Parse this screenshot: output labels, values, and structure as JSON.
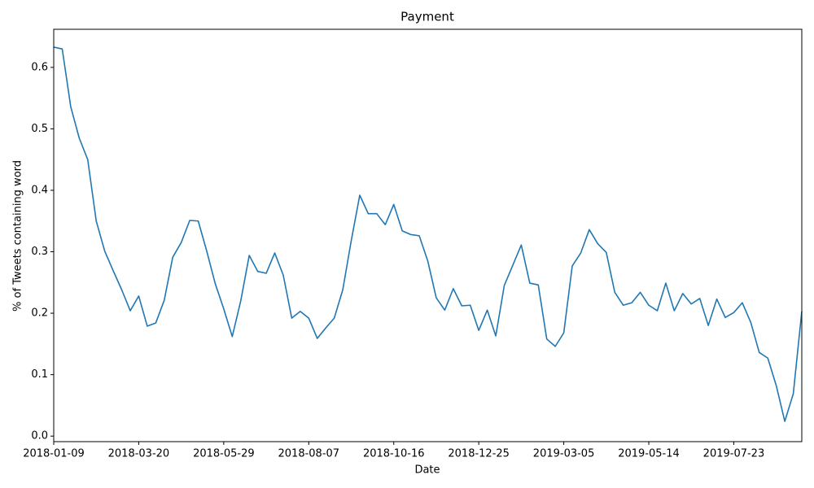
{
  "chart_data": {
    "type": "line",
    "title": "Payment",
    "xlabel": "Date",
    "ylabel": "% of Tweets containing word",
    "x": [
      "2018-01-09",
      "2018-01-16",
      "2018-01-23",
      "2018-01-30",
      "2018-02-06",
      "2018-02-13",
      "2018-02-20",
      "2018-02-27",
      "2018-03-06",
      "2018-03-13",
      "2018-03-20",
      "2018-03-27",
      "2018-04-03",
      "2018-04-10",
      "2018-04-17",
      "2018-04-24",
      "2018-05-01",
      "2018-05-08",
      "2018-05-15",
      "2018-05-22",
      "2018-05-29",
      "2018-06-05",
      "2018-06-12",
      "2018-06-19",
      "2018-06-26",
      "2018-07-03",
      "2018-07-10",
      "2018-07-17",
      "2018-07-24",
      "2018-07-31",
      "2018-08-07",
      "2018-08-14",
      "2018-08-21",
      "2018-08-28",
      "2018-09-04",
      "2018-09-11",
      "2018-09-18",
      "2018-09-25",
      "2018-10-02",
      "2018-10-09",
      "2018-10-16",
      "2018-10-23",
      "2018-10-30",
      "2018-11-06",
      "2018-11-13",
      "2018-11-20",
      "2018-11-27",
      "2018-12-04",
      "2018-12-11",
      "2018-12-18",
      "2018-12-25",
      "2019-01-01",
      "2019-01-08",
      "2019-01-15",
      "2019-01-22",
      "2019-01-29",
      "2019-02-05",
      "2019-02-12",
      "2019-02-19",
      "2019-02-26",
      "2019-03-05",
      "2019-03-12",
      "2019-03-19",
      "2019-03-26",
      "2019-04-02",
      "2019-04-09",
      "2019-04-16",
      "2019-04-23",
      "2019-04-30",
      "2019-05-07",
      "2019-05-14",
      "2019-05-21",
      "2019-05-28",
      "2019-06-04",
      "2019-06-11",
      "2019-06-18",
      "2019-06-25",
      "2019-07-02",
      "2019-07-09",
      "2019-07-16",
      "2019-07-23",
      "2019-07-30",
      "2019-08-06",
      "2019-08-13",
      "2019-08-20",
      "2019-08-27",
      "2019-09-03",
      "2019-09-10",
      "2019-09-17"
    ],
    "series": [
      {
        "name": "Payment",
        "color": "#1f77b4",
        "values": [
          0.633,
          0.63,
          0.536,
          0.485,
          0.45,
          0.35,
          0.301,
          0.269,
          0.238,
          0.204,
          0.228,
          0.179,
          0.184,
          0.221,
          0.291,
          0.315,
          0.351,
          0.35,
          0.301,
          0.248,
          0.207,
          0.162,
          0.22,
          0.294,
          0.268,
          0.265,
          0.298,
          0.262,
          0.192,
          0.203,
          0.192,
          0.159,
          0.176,
          0.192,
          0.238,
          0.318,
          0.392,
          0.362,
          0.362,
          0.344,
          0.377,
          0.334,
          0.328,
          0.326,
          0.285,
          0.225,
          0.205,
          0.24,
          0.212,
          0.213,
          0.172,
          0.205,
          0.163,
          0.245,
          0.278,
          0.311,
          0.249,
          0.246,
          0.158,
          0.146,
          0.168,
          0.277,
          0.298,
          0.336,
          0.313,
          0.299,
          0.234,
          0.213,
          0.217,
          0.234,
          0.213,
          0.204,
          0.249,
          0.204,
          0.232,
          0.215,
          0.224,
          0.18,
          0.223,
          0.193,
          0.201,
          0.217,
          0.185,
          0.136,
          0.127,
          0.082,
          0.024,
          0.069,
          0.203
        ]
      }
    ],
    "xlim": [
      "2018-01-09",
      "2019-09-17"
    ],
    "xticks": [
      "2018-01-09",
      "2018-03-20",
      "2018-05-29",
      "2018-08-07",
      "2018-10-16",
      "2018-12-25",
      "2019-03-05",
      "2019-05-14",
      "2019-07-23"
    ],
    "ylim": [
      -0.009,
      0.662
    ],
    "yticks": [
      {
        "value": 0,
        "label": "0.0"
      },
      0.1,
      0.2,
      0.3,
      0.4,
      0.5,
      0.6
    ],
    "grid": false
  }
}
